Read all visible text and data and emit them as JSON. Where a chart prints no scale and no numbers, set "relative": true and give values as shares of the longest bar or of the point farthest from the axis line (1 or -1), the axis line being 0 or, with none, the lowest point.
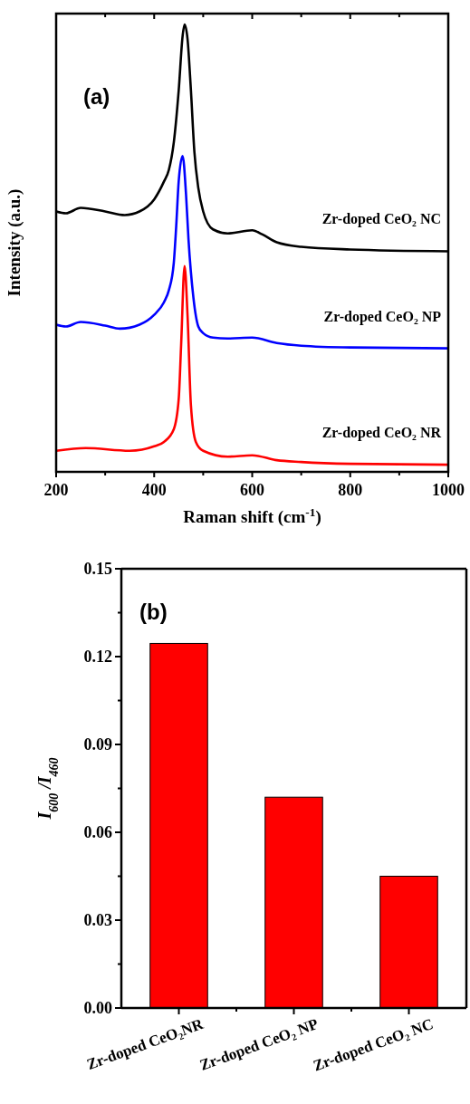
{
  "chart_data": [
    {
      "type": "line",
      "title": "(a)",
      "xlabel": "Raman shift (cm$^{-1}$)",
      "ylabel": "Intensity (a.u.)",
      "relative": true,
      "xlim": [
        200,
        1000
      ],
      "xticks": [
        200,
        400,
        600,
        800,
        1000
      ],
      "grid": false,
      "series": [
        {
          "name": "Zr-doped CeO₂ NC",
          "color": "#000000",
          "x": [
            200,
            220,
            250,
            300,
            340,
            370,
            400,
            420,
            430,
            440,
            450,
            458,
            462,
            468,
            475,
            482,
            490,
            500,
            520,
            550,
            600,
            620,
            650,
            700,
            800,
            1000
          ],
          "values": [
            0.582,
            0.578,
            0.59,
            0.582,
            0.574,
            0.582,
            0.609,
            0.649,
            0.675,
            0.736,
            0.852,
            0.974,
            1,
            0.968,
            0.852,
            0.716,
            0.635,
            0.582,
            0.542,
            0.533,
            0.54,
            0.531,
            0.513,
            0.503,
            0.497,
            0.493
          ]
        },
        {
          "name": "Zr-doped CeO₂ NP",
          "color": "#0000ff",
          "x": [
            200,
            220,
            250,
            300,
            330,
            370,
            400,
            420,
            430,
            440,
            445,
            450,
            458,
            465,
            470,
            480,
            490,
            500,
            520,
            550,
            600,
            650,
            700,
            800,
            1000
          ],
          "values": [
            0.329,
            0.325,
            0.335,
            0.327,
            0.32,
            0.329,
            0.351,
            0.379,
            0.406,
            0.467,
            0.55,
            0.649,
            0.706,
            0.62,
            0.52,
            0.39,
            0.325,
            0.31,
            0.3,
            0.298,
            0.3,
            0.288,
            0.282,
            0.278,
            0.276
          ]
        },
        {
          "name": "Zr-doped CeO₂ NR",
          "color": "#ff0000",
          "x": [
            200,
            260,
            350,
            400,
            420,
            440,
            450,
            455,
            462,
            468,
            475,
            485,
            500,
            550,
            600,
            650,
            700,
            800,
            1000
          ],
          "values": [
            0.047,
            0.053,
            0.047,
            0.057,
            0.067,
            0.095,
            0.162,
            0.284,
            0.46,
            0.351,
            0.148,
            0.067,
            0.047,
            0.034,
            0.037,
            0.026,
            0.022,
            0.018,
            0.016
          ]
        }
      ]
    },
    {
      "type": "bar",
      "title": "(b)",
      "ylabel": "I$_{600}$ /I$_{460}$",
      "categories": [
        "Zr-doped CeO₂NR",
        "Zr-doped CeO₂ NP",
        "Zr-doped CeO₂ NC"
      ],
      "values": [
        0.1245,
        0.072,
        0.045
      ],
      "color": "#ff0000",
      "ylim": [
        0,
        0.15
      ],
      "yticks": [
        {
          "value": 0,
          "label": "0.00"
        },
        0.03,
        0.06,
        0.09,
        0.12,
        0.15
      ],
      "grid": false
    }
  ]
}
